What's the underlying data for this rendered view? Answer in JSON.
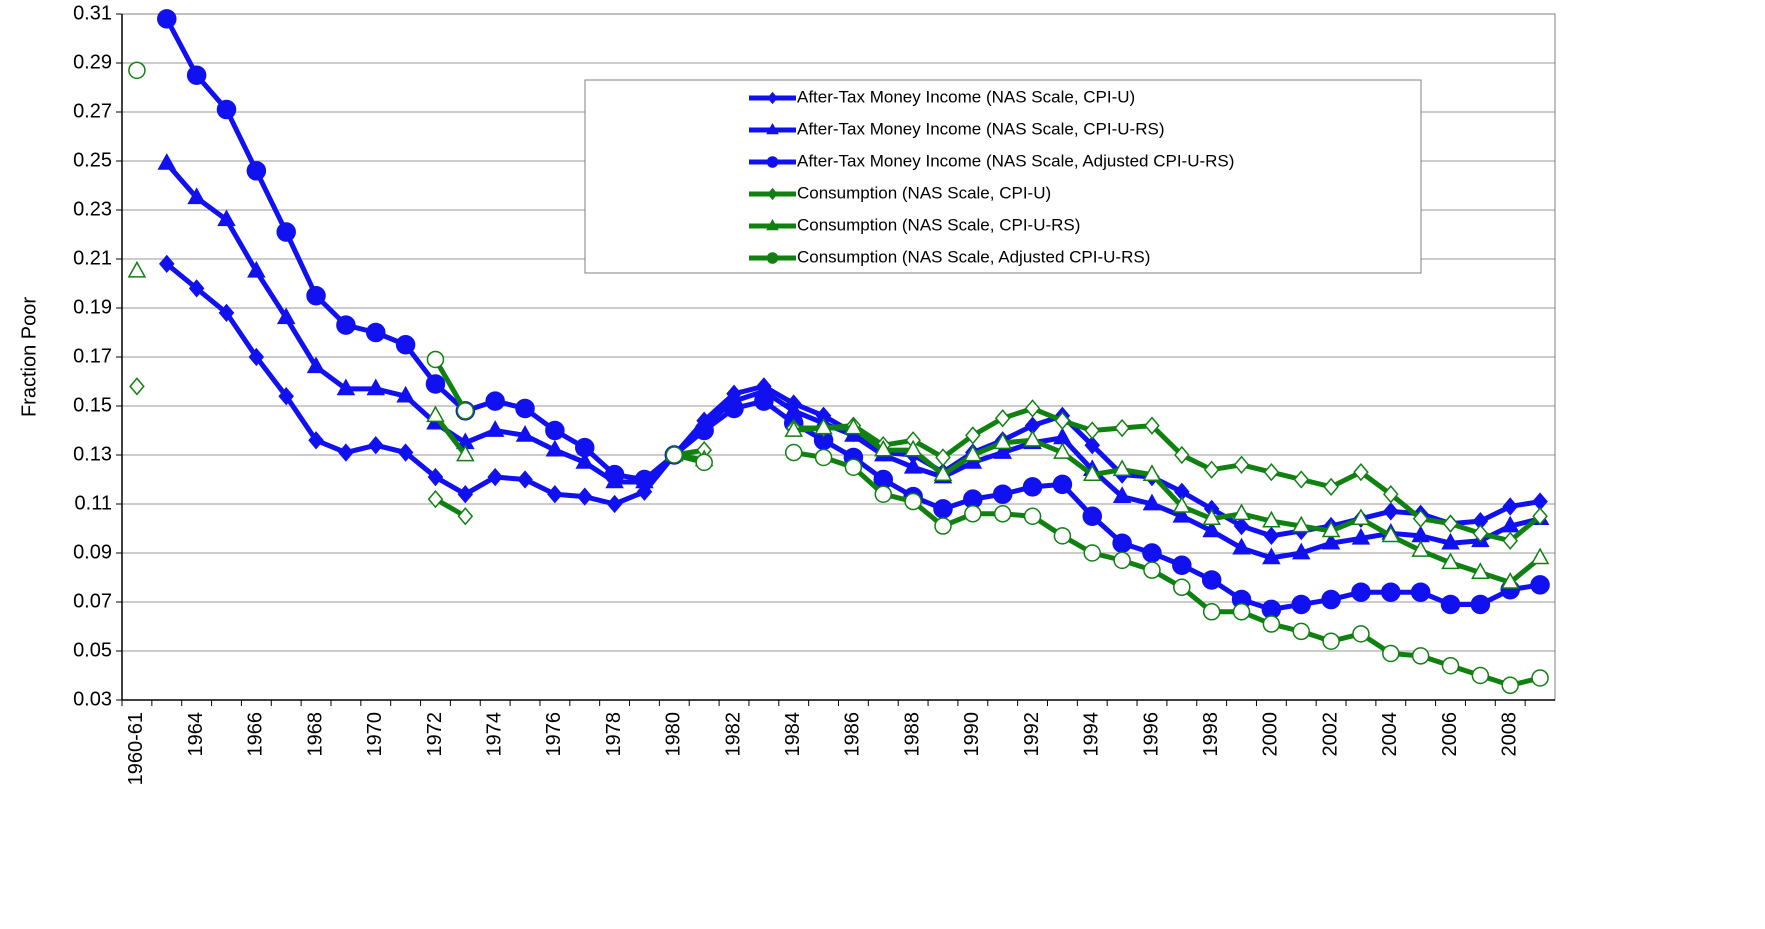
{
  "chart_data": {
    "type": "line",
    "y_label": "Fraction Poor",
    "categories": [
      "1960-61",
      null,
      "1964",
      null,
      "1966",
      null,
      "1968",
      null,
      "1970",
      null,
      "1972",
      null,
      "1974",
      null,
      "1976",
      null,
      "1978",
      null,
      "1980",
      null,
      "1982",
      null,
      "1984",
      null,
      "1986",
      null,
      "1988",
      null,
      "1990",
      null,
      "1992",
      null,
      "1994",
      null,
      "1996",
      null,
      "1998",
      null,
      "2000",
      null,
      "2002",
      null,
      "2004",
      null,
      "2006",
      null,
      "2008",
      null
    ],
    "ylim": [
      0.03,
      0.31
    ],
    "yticks": [
      0.03,
      0.05,
      0.07,
      0.09,
      0.11,
      0.13,
      0.15,
      0.17,
      0.19,
      0.21,
      0.23,
      0.25,
      0.27,
      0.29,
      0.31
    ],
    "grid": true,
    "legend": "top-right",
    "series": [
      {
        "name": "After-Tax Money Income (NAS Scale, CPI-U)",
        "color": "#1010f0",
        "marker": "diamond",
        "hollow": false,
        "values": [
          null,
          0.208,
          0.198,
          0.188,
          0.17,
          0.154,
          0.136,
          0.131,
          0.134,
          0.131,
          0.121,
          0.114,
          0.121,
          0.12,
          0.114,
          0.113,
          0.11,
          0.115,
          0.13,
          0.144,
          0.155,
          0.158,
          0.151,
          0.146,
          0.139,
          0.131,
          0.13,
          0.123,
          0.131,
          0.136,
          0.142,
          0.146,
          0.134,
          0.122,
          0.121,
          0.115,
          0.108,
          0.101,
          0.097,
          0.099,
          0.101,
          0.104,
          0.107,
          0.106,
          0.102,
          0.103,
          0.109,
          0.111
        ]
      },
      {
        "name": "After-Tax Money Income (NAS Scale, CPI-U-RS)",
        "color": "#1010f0",
        "marker": "triangle",
        "hollow": false,
        "values": [
          null,
          0.249,
          0.235,
          0.226,
          0.205,
          0.186,
          0.166,
          0.157,
          0.157,
          0.154,
          0.143,
          0.135,
          0.14,
          0.138,
          0.132,
          0.127,
          0.119,
          0.119,
          0.13,
          0.142,
          0.152,
          0.156,
          0.148,
          0.143,
          0.138,
          0.13,
          0.125,
          0.121,
          0.127,
          0.131,
          0.135,
          0.137,
          0.124,
          0.113,
          0.11,
          0.105,
          0.099,
          0.092,
          0.088,
          0.09,
          0.094,
          0.096,
          0.098,
          0.097,
          0.094,
          0.095,
          0.101,
          0.104
        ]
      },
      {
        "name": "After-Tax Money Income (NAS Scale, Adjusted CPI-U-RS)",
        "color": "#1010f0",
        "marker": "circle",
        "hollow": false,
        "values": [
          null,
          0.308,
          0.285,
          0.271,
          0.246,
          0.221,
          0.195,
          0.183,
          0.18,
          0.175,
          0.159,
          0.148,
          0.152,
          0.149,
          0.14,
          0.133,
          0.122,
          0.12,
          0.13,
          0.14,
          0.149,
          0.152,
          0.143,
          0.136,
          0.129,
          0.12,
          0.113,
          0.108,
          0.112,
          0.114,
          0.117,
          0.118,
          0.105,
          0.094,
          0.09,
          0.085,
          0.079,
          0.071,
          0.067,
          0.069,
          0.071,
          0.074,
          0.074,
          0.074,
          0.069,
          0.069,
          0.075,
          0.077
        ]
      },
      {
        "name": "Consumption (NAS Scale, CPI-U)",
        "color": "#108010",
        "marker": "diamond",
        "hollow": true,
        "values": [
          0.158,
          null,
          null,
          null,
          null,
          null,
          null,
          null,
          null,
          null,
          0.112,
          0.105,
          null,
          null,
          null,
          null,
          null,
          null,
          0.13,
          0.132,
          null,
          null,
          0.141,
          0.141,
          0.142,
          0.134,
          0.136,
          0.129,
          0.138,
          0.145,
          0.149,
          0.144,
          0.14,
          0.141,
          0.142,
          0.13,
          0.124,
          0.126,
          0.123,
          0.12,
          0.117,
          0.123,
          0.114,
          0.104,
          0.102,
          0.098,
          0.095,
          0.105
        ]
      },
      {
        "name": "Consumption (NAS Scale, CPI-U-RS)",
        "color": "#108010",
        "marker": "triangle",
        "hollow": true,
        "values": [
          0.205,
          null,
          null,
          null,
          null,
          null,
          null,
          null,
          null,
          null,
          0.146,
          0.13,
          null,
          null,
          null,
          null,
          null,
          null,
          0.13,
          0.128,
          null,
          null,
          0.14,
          0.141,
          0.141,
          0.132,
          0.132,
          0.122,
          0.13,
          0.135,
          0.136,
          0.131,
          0.122,
          0.124,
          0.122,
          0.109,
          0.104,
          0.106,
          0.103,
          0.101,
          0.099,
          0.104,
          0.097,
          0.091,
          0.086,
          0.082,
          0.078,
          0.088
        ]
      },
      {
        "name": "Consumption (NAS Scale, Adjusted CPI-U-RS)",
        "color": "#108010",
        "marker": "circle",
        "hollow": true,
        "values": [
          0.287,
          null,
          null,
          null,
          null,
          null,
          null,
          null,
          null,
          null,
          0.169,
          0.148,
          null,
          null,
          null,
          null,
          null,
          null,
          0.13,
          0.127,
          null,
          null,
          0.131,
          0.129,
          0.125,
          0.114,
          0.111,
          0.101,
          0.106,
          0.106,
          0.105,
          0.097,
          0.09,
          0.087,
          0.083,
          0.076,
          0.066,
          0.066,
          0.061,
          0.058,
          0.054,
          0.057,
          0.049,
          0.048,
          0.044,
          0.04,
          0.036,
          0.039
        ]
      }
    ]
  }
}
